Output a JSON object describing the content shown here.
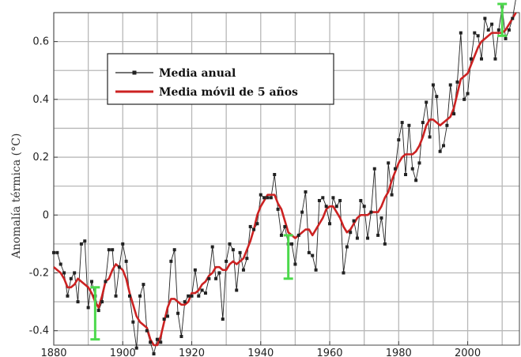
{
  "chart_data": {
    "type": "line",
    "title": "",
    "xlabel": "",
    "ylabel": "Anomalía térmica (°C)",
    "xlim": [
      1880,
      2015
    ],
    "ylim": [
      -0.45,
      0.7
    ],
    "x_ticks": [
      1880,
      1900,
      1920,
      1940,
      1960,
      1980,
      2000
    ],
    "y_ticks": [
      -0.4,
      -0.2,
      0,
      0.2,
      0.4,
      0.6
    ],
    "x_tick_labels": [
      "1880",
      "1900",
      "1920",
      "1940",
      "1960",
      "1980",
      "2000"
    ],
    "y_tick_labels": [
      "-0.4",
      "-0.2",
      "0",
      "0.2",
      "0.4",
      "0.6"
    ],
    "grid": true,
    "legend_position": "upper-left",
    "x": [
      1880,
      1881,
      1882,
      1883,
      1884,
      1885,
      1886,
      1887,
      1888,
      1889,
      1890,
      1891,
      1892,
      1893,
      1894,
      1895,
      1896,
      1897,
      1898,
      1899,
      1900,
      1901,
      1902,
      1903,
      1904,
      1905,
      1906,
      1907,
      1908,
      1909,
      1910,
      1911,
      1912,
      1913,
      1914,
      1915,
      1916,
      1917,
      1918,
      1919,
      1920,
      1921,
      1922,
      1923,
      1924,
      1925,
      1926,
      1927,
      1928,
      1929,
      1930,
      1931,
      1932,
      1933,
      1934,
      1935,
      1936,
      1937,
      1938,
      1939,
      1940,
      1941,
      1942,
      1943,
      1944,
      1945,
      1946,
      1947,
      1948,
      1949,
      1950,
      1951,
      1952,
      1953,
      1954,
      1955,
      1956,
      1957,
      1958,
      1959,
      1960,
      1961,
      1962,
      1963,
      1964,
      1965,
      1966,
      1967,
      1968,
      1969,
      1970,
      1971,
      1972,
      1973,
      1974,
      1975,
      1976,
      1977,
      1978,
      1979,
      1980,
      1981,
      1982,
      1983,
      1984,
      1985,
      1986,
      1987,
      1988,
      1989,
      1990,
      1991,
      1992,
      1993,
      1994,
      1995,
      1996,
      1997,
      1998,
      1999,
      2000,
      2001,
      2002,
      2003,
      2004,
      2005,
      2006,
      2007,
      2008,
      2009,
      2010,
      2011,
      2012,
      2013,
      2014
    ],
    "series": [
      {
        "name": "Media anual",
        "color": "#222222",
        "values": [
          -0.13,
          -0.13,
          -0.17,
          -0.2,
          -0.28,
          -0.22,
          -0.2,
          -0.3,
          -0.1,
          -0.09,
          -0.32,
          -0.23,
          -0.28,
          -0.33,
          -0.3,
          -0.23,
          -0.12,
          -0.12,
          -0.28,
          -0.18,
          -0.1,
          -0.16,
          -0.28,
          -0.37,
          -0.46,
          -0.28,
          -0.24,
          -0.4,
          -0.44,
          -0.48,
          -0.43,
          -0.44,
          -0.36,
          -0.35,
          -0.16,
          -0.12,
          -0.34,
          -0.42,
          -0.3,
          -0.28,
          -0.28,
          -0.19,
          -0.28,
          -0.26,
          -0.27,
          -0.22,
          -0.11,
          -0.22,
          -0.2,
          -0.36,
          -0.16,
          -0.1,
          -0.12,
          -0.26,
          -0.13,
          -0.19,
          -0.15,
          -0.04,
          -0.05,
          -0.03,
          0.07,
          0.06,
          0.06,
          0.06,
          0.14,
          0.02,
          -0.07,
          -0.04,
          -0.1,
          -0.1,
          -0.17,
          -0.07,
          0.01,
          0.08,
          -0.13,
          -0.14,
          -0.19,
          0.05,
          0.06,
          0.03,
          -0.03,
          0.06,
          0.03,
          0.05,
          -0.2,
          -0.11,
          -0.06,
          -0.02,
          -0.08,
          0.05,
          0.03,
          -0.08,
          0.01,
          0.16,
          -0.07,
          -0.01,
          -0.1,
          0.18,
          0.07,
          0.16,
          0.26,
          0.32,
          0.14,
          0.31,
          0.16,
          0.12,
          0.18,
          0.32,
          0.39,
          0.27,
          0.45,
          0.41,
          0.22,
          0.24,
          0.31,
          0.45,
          0.35,
          0.46,
          0.63,
          0.4,
          0.42,
          0.54,
          0.63,
          0.62,
          0.54,
          0.68,
          0.64,
          0.66,
          0.54,
          0.64,
          0.72,
          0.61,
          0.64,
          0.68,
          0.75
        ]
      },
      {
        "name": "Media móvil de 5 años",
        "color": "#cc2222",
        "values": [
          -0.18,
          -0.19,
          -0.2,
          -0.22,
          -0.25,
          -0.25,
          -0.24,
          -0.22,
          -0.23,
          -0.24,
          -0.25,
          -0.27,
          -0.3,
          -0.32,
          -0.28,
          -0.23,
          -0.22,
          -0.19,
          -0.17,
          -0.18,
          -0.19,
          -0.22,
          -0.27,
          -0.31,
          -0.35,
          -0.37,
          -0.38,
          -0.39,
          -0.43,
          -0.45,
          -0.45,
          -0.42,
          -0.37,
          -0.32,
          -0.29,
          -0.29,
          -0.3,
          -0.31,
          -0.31,
          -0.3,
          -0.27,
          -0.27,
          -0.26,
          -0.24,
          -0.23,
          -0.21,
          -0.2,
          -0.18,
          -0.18,
          -0.19,
          -0.19,
          -0.17,
          -0.16,
          -0.17,
          -0.16,
          -0.15,
          -0.12,
          -0.09,
          -0.05,
          0,
          0.03,
          0.05,
          0.07,
          0.07,
          0.07,
          0.04,
          0.02,
          -0.02,
          -0.06,
          -0.07,
          -0.08,
          -0.07,
          -0.06,
          -0.05,
          -0.05,
          -0.07,
          -0.05,
          -0.03,
          -0.01,
          0.02,
          0.03,
          0.03,
          0.01,
          -0.01,
          -0.04,
          -0.06,
          -0.05,
          -0.03,
          -0.01,
          0,
          0,
          0,
          0.01,
          0.01,
          0.01,
          0.03,
          0.06,
          0.08,
          0.12,
          0.15,
          0.18,
          0.2,
          0.21,
          0.21,
          0.21,
          0.22,
          0.24,
          0.27,
          0.31,
          0.33,
          0.33,
          0.32,
          0.31,
          0.32,
          0.33,
          0.34,
          0.37,
          0.42,
          0.47,
          0.48,
          0.49,
          0.52,
          0.55,
          0.58,
          0.6,
          0.61,
          0.62,
          0.63,
          0.63,
          0.63,
          0.63,
          0.64,
          0.66,
          0.68,
          0.7
        ]
      }
    ],
    "error_bars": [
      {
        "x": 1892,
        "low": -0.43,
        "high": -0.25
      },
      {
        "x": 1948,
        "low": -0.22,
        "high": -0.07
      },
      {
        "x": 2010,
        "low": 0.62,
        "high": 0.73
      }
    ],
    "error_bar_color": "#4cd94c"
  }
}
